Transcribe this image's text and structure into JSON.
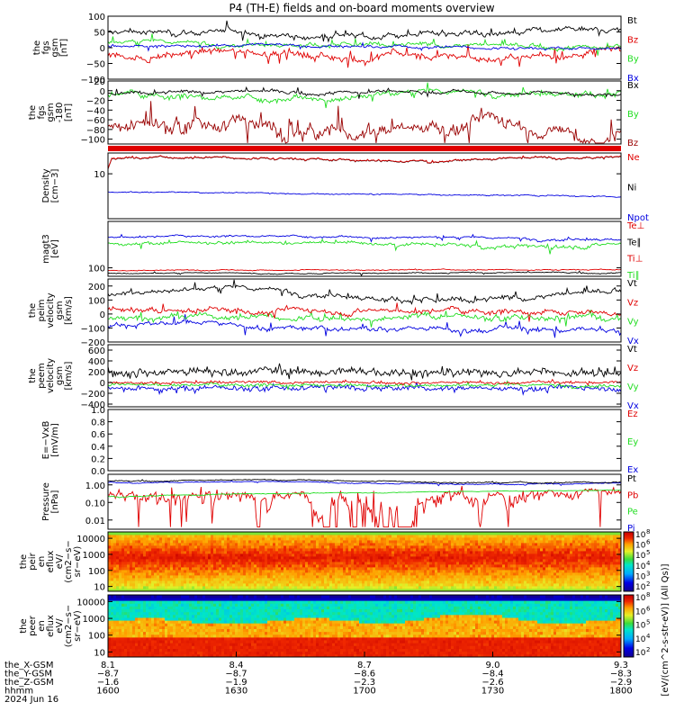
{
  "title": "P4 (TH-E) fields and on-board moments overview",
  "colors": {
    "black": "#000000",
    "red": "#e00000",
    "green": "#22dd22",
    "blue": "#0000e0",
    "darkred": "#990000"
  },
  "panels": [
    {
      "id": "fgs-gsm",
      "ylabel": [
        "the",
        "fgs",
        "gsm",
        "[nT]"
      ],
      "ticks": [
        "100",
        "50",
        "0",
        "−50",
        "−100"
      ],
      "tick_values": [
        100,
        50,
        0,
        -50,
        -100
      ],
      "ylim": [
        -100,
        100
      ],
      "log": false,
      "legend": [
        {
          "name": "Bt",
          "color": "#000000"
        },
        {
          "name": "Bz",
          "color": "#e00000"
        },
        {
          "name": "By",
          "color": "#22dd22"
        },
        {
          "name": "Bx",
          "color": "#0000e0"
        }
      ]
    },
    {
      "id": "fgs-gse",
      "ylabel": [
        "the",
        "fgs",
        "gsm",
        "-180",
        "[nT]"
      ],
      "ticks": [
        "20",
        "0",
        "−20",
        "−40",
        "−60",
        "−80",
        "−100"
      ],
      "tick_values": [
        20,
        0,
        -20,
        -40,
        -60,
        -80,
        -100
      ],
      "ylim": [
        -110,
        20
      ],
      "log": false,
      "legend": [
        {
          "name": "Bx",
          "color": "#000000"
        },
        {
          "name": "By",
          "color": "#22dd22"
        },
        {
          "name": "Bz",
          "color": "#990000"
        }
      ]
    },
    {
      "id": "density",
      "ylabel": [
        "Density",
        "[cm−3]"
      ],
      "ticks": [
        "10"
      ],
      "tick_values": [
        10
      ],
      "ylim": [
        0.5,
        40
      ],
      "log": true,
      "legend": [
        {
          "name": "Ne",
          "color": "#e00000"
        },
        {
          "name": "Ni",
          "color": "#000000"
        },
        {
          "name": "Npot",
          "color": "#0000e0"
        }
      ]
    },
    {
      "id": "temperature",
      "ylabel": [
        "magt3",
        "[eV]"
      ],
      "ticks": [
        "100"
      ],
      "tick_values": [
        100
      ],
      "ylim": [
        40,
        15000
      ],
      "log": true,
      "legend": [
        {
          "name": "Te⊥",
          "color": "#e00000"
        },
        {
          "name": "Te∥",
          "color": "#000000"
        },
        {
          "name": "Ti⊥",
          "color": "#e00000"
        },
        {
          "name": "Ti∥",
          "color": "#22dd22"
        }
      ]
    },
    {
      "id": "peim-velocity",
      "ylabel": [
        "the",
        "peim",
        "velocity",
        "gsm",
        "[km/s]"
      ],
      "ticks": [
        "200",
        "100",
        "0",
        "−100",
        "−200"
      ],
      "tick_values": [
        200,
        100,
        0,
        -100,
        -200
      ],
      "ylim": [
        -200,
        250
      ],
      "log": false,
      "legend": [
        {
          "name": "Vt",
          "color": "#000000"
        },
        {
          "name": "Vz",
          "color": "#e00000"
        },
        {
          "name": "Vy",
          "color": "#22dd22"
        },
        {
          "name": "Vx",
          "color": "#0000e0"
        }
      ]
    },
    {
      "id": "peem-velocity",
      "ylabel": [
        "the",
        "peem",
        "velocity",
        "gsm",
        "[km/s]"
      ],
      "ticks": [
        "600",
        "400",
        "200",
        "0",
        "−200",
        "−400"
      ],
      "tick_values": [
        600,
        400,
        200,
        0,
        -200,
        -400
      ],
      "ylim": [
        -450,
        700
      ],
      "log": false,
      "legend": [
        {
          "name": "Vt",
          "color": "#000000"
        },
        {
          "name": "Vz",
          "color": "#e00000"
        },
        {
          "name": "Vy",
          "color": "#22dd22"
        },
        {
          "name": "Vx",
          "color": "#0000e0"
        }
      ]
    },
    {
      "id": "efield",
      "ylabel": [
        "E=−VxB",
        "[mV/m]"
      ],
      "ticks": [
        "1.0",
        "0.8",
        "0.6",
        "0.4",
        "0.2",
        "0.0"
      ],
      "tick_values": [
        1.0,
        0.8,
        0.6,
        0.4,
        0.2,
        0.0
      ],
      "ylim": [
        0,
        1
      ],
      "log": false,
      "legend": [
        {
          "name": "Ez",
          "color": "#e00000"
        },
        {
          "name": "Ey",
          "color": "#22dd22"
        },
        {
          "name": "Ex",
          "color": "#0000e0"
        }
      ]
    },
    {
      "id": "pressure",
      "ylabel": [
        "Pressure",
        "[nPa]"
      ],
      "ticks": [
        "1.00",
        "0.10",
        "0.01"
      ],
      "tick_values": [
        1,
        0.1,
        0.01
      ],
      "ylim": [
        0.003,
        4
      ],
      "log": true,
      "legend": [
        {
          "name": "Pt",
          "color": "#000000"
        },
        {
          "name": "Pb",
          "color": "#e00000"
        },
        {
          "name": "Pe",
          "color": "#22dd22"
        },
        {
          "name": "Pi",
          "color": "#0000e0"
        }
      ]
    },
    {
      "id": "peir-eflux",
      "ylabel": [
        "the",
        "peir",
        "en",
        "eflux",
        "eV/",
        "(cm2−s−",
        "sr−eV)"
      ],
      "ticks": [
        "10000",
        "1000",
        "100",
        "10"
      ],
      "tick_values": [
        10000,
        1000,
        100,
        10
      ],
      "ylim": [
        5,
        25000
      ],
      "log": true
    },
    {
      "id": "peer-eflux",
      "ylabel": [
        "the",
        "peer",
        "en",
        "eflux",
        "eV/",
        "(cm2−s−",
        "sr−eV)"
      ],
      "ticks": [
        "10000",
        "1000",
        "100",
        "10"
      ],
      "tick_values": [
        10000,
        1000,
        100,
        10
      ],
      "ylim": [
        5,
        25000
      ],
      "log": true
    }
  ],
  "colorbar": {
    "top_ticks": [
      "10",
      "10",
      "10",
      "10",
      "10",
      "10"
    ],
    "top_exps": [
      "8",
      "6",
      "5",
      "4",
      "3",
      "2"
    ],
    "bottom_ticks": [
      "10",
      "10",
      "10",
      "10",
      "10"
    ],
    "bottom_exps": [
      "8",
      "6",
      "5",
      "4",
      "2"
    ],
    "label": "[eV/(cm^2-s-str-eV)] (All Qs)]"
  },
  "xaxis": {
    "rows": [
      {
        "label": "the_X-GSM",
        "values": [
          "8.1",
          "8.4",
          "8.7",
          "9.0",
          "9.3"
        ]
      },
      {
        "label": "the_Y-GSM",
        "values": [
          "−8.7",
          "−8.7",
          "−8.6",
          "−8.4",
          "−8.3"
        ]
      },
      {
        "label": "the_Z-GSM",
        "values": [
          "−1.6",
          "−1.9",
          "−2.3",
          "−2.6",
          "−2.9"
        ]
      },
      {
        "label": "hhmm",
        "values": [
          "1600",
          "1630",
          "1700",
          "1730",
          "1800"
        ]
      }
    ],
    "date": "2024 Jun 16"
  },
  "chart_data": {
    "type": "line",
    "title": "P4 (TH-E) fields and on-board moments overview",
    "x_ticks": [
      "1600",
      "1630",
      "1700",
      "1730",
      "1800"
    ],
    "x_range": [
      "16:00",
      "18:00"
    ],
    "series": [
      {
        "panel": "fgs-gsm",
        "name": "Bt",
        "values": [
          45,
          50,
          48,
          55,
          60,
          52,
          58,
          50,
          48,
          55,
          50,
          65
        ]
      },
      {
        "panel": "fgs-gsm",
        "name": "Bz",
        "values": [
          -10,
          -20,
          -30,
          -25,
          -35,
          -20,
          -40,
          -15,
          -30,
          -20,
          -10,
          -20
        ]
      },
      {
        "panel": "fgs-gsm",
        "name": "By",
        "values": [
          20,
          15,
          10,
          12,
          5,
          8,
          10,
          5,
          3,
          2,
          5,
          0
        ]
      },
      {
        "panel": "fgs-gsm",
        "name": "Bx",
        "values": [
          5,
          3,
          0,
          2,
          -2,
          0,
          3,
          5,
          8,
          5,
          2,
          0
        ]
      },
      {
        "panel": "density",
        "name": "Ne",
        "values": [
          25,
          28,
          27,
          26,
          28,
          29,
          30,
          29,
          28,
          28,
          27,
          27
        ]
      },
      {
        "panel": "density",
        "name": "Npot",
        "values": [
          3,
          3,
          2.8,
          2.6,
          2.5,
          2.4,
          2.3,
          2.3,
          2.2,
          2.2,
          2.2,
          2.2
        ]
      },
      {
        "panel": "pressure",
        "name": "Pt",
        "values": [
          1.5,
          1.6,
          1.4,
          1.6,
          1.7,
          1.8,
          1.9,
          1.7,
          1.6,
          1.5,
          1.5,
          1.4
        ]
      },
      {
        "panel": "pressure",
        "name": "Pe",
        "values": [
          0.3,
          0.3,
          0.35,
          0.35,
          0.4,
          0.4,
          0.45,
          0.45,
          0.5,
          0.5,
          0.5,
          0.5
        ]
      }
    ]
  }
}
